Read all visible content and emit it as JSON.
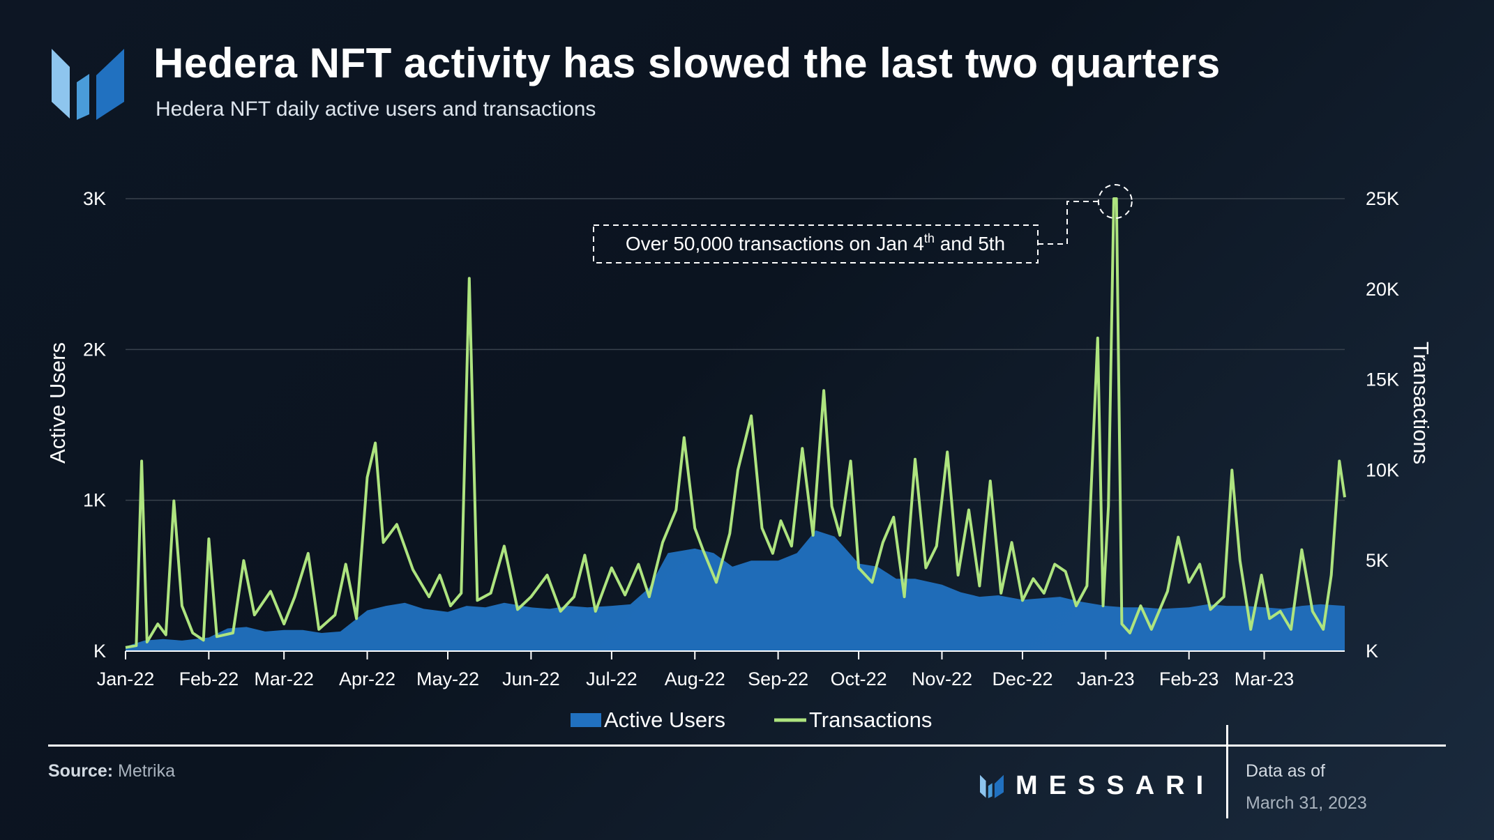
{
  "header": {
    "title": "Hedera NFT activity has slowed the last two quarters",
    "subtitle": "Hedera NFT daily active users and transactions"
  },
  "footer": {
    "source_label": "Source:",
    "source_value": "Metrika",
    "brand": "MESSARI",
    "asof_label": "Data as of",
    "asof_date": "March 31, 2023"
  },
  "colors": {
    "active_users": "#2171c0",
    "transactions": "#aee47f",
    "grid": "#39424d",
    "background": "#0d1624"
  },
  "icons": [
    "messari-logo-icon"
  ],
  "chart_data": {
    "type": "area",
    "title": "Hedera NFT activity has slowed the last two quarters",
    "subtitle": "Hedera NFT daily active users and transactions",
    "x_ticks": [
      "Jan-22",
      "Feb-22",
      "Mar-22",
      "Apr-22",
      "May-22",
      "Jun-22",
      "Jul-22",
      "Aug-22",
      "Sep-22",
      "Oct-22",
      "Nov-22",
      "Dec-22",
      "Jan-23",
      "Feb-23",
      "Mar-23"
    ],
    "x_range": [
      "2022-01-01",
      "2023-03-31"
    ],
    "ylabel_left": "Active Users",
    "ylabel_right": "Transactions",
    "ylim_left": [
      0,
      3000
    ],
    "ylim_right": [
      0,
      25000
    ],
    "yticks_left": [
      "K",
      "1K",
      "2K",
      "3K"
    ],
    "yticks_right": [
      "K",
      "5K",
      "10K",
      "15K",
      "20K",
      "25K"
    ],
    "grid": true,
    "legend_position": "bottom",
    "annotation": {
      "text_before": "Over 50,000 transactions on Jan 4",
      "superscript": "th",
      "text_after": " and 5th",
      "target_dates": [
        "2023-01-04",
        "2023-01-05"
      ]
    },
    "series": [
      {
        "name": "Active Users",
        "axis": "left",
        "style": "area",
        "points": [
          [
            "2022-01-01",
            30
          ],
          [
            "2022-01-08",
            70
          ],
          [
            "2022-01-15",
            80
          ],
          [
            "2022-01-22",
            70
          ],
          [
            "2022-02-01",
            90
          ],
          [
            "2022-02-08",
            150
          ],
          [
            "2022-02-15",
            160
          ],
          [
            "2022-02-22",
            130
          ],
          [
            "2022-03-01",
            140
          ],
          [
            "2022-03-08",
            140
          ],
          [
            "2022-03-15",
            120
          ],
          [
            "2022-03-22",
            130
          ],
          [
            "2022-04-01",
            270
          ],
          [
            "2022-04-08",
            300
          ],
          [
            "2022-04-15",
            320
          ],
          [
            "2022-04-22",
            280
          ],
          [
            "2022-05-01",
            260
          ],
          [
            "2022-05-08",
            300
          ],
          [
            "2022-05-15",
            290
          ],
          [
            "2022-05-22",
            320
          ],
          [
            "2022-06-01",
            290
          ],
          [
            "2022-06-08",
            280
          ],
          [
            "2022-06-15",
            300
          ],
          [
            "2022-06-22",
            290
          ],
          [
            "2022-07-01",
            300
          ],
          [
            "2022-07-08",
            310
          ],
          [
            "2022-07-15",
            420
          ],
          [
            "2022-07-22",
            650
          ],
          [
            "2022-08-01",
            680
          ],
          [
            "2022-08-08",
            650
          ],
          [
            "2022-08-15",
            560
          ],
          [
            "2022-08-22",
            600
          ],
          [
            "2022-09-01",
            600
          ],
          [
            "2022-09-08",
            650
          ],
          [
            "2022-09-15",
            800
          ],
          [
            "2022-09-22",
            760
          ],
          [
            "2022-10-01",
            580
          ],
          [
            "2022-10-08",
            560
          ],
          [
            "2022-10-15",
            480
          ],
          [
            "2022-10-22",
            480
          ],
          [
            "2022-11-01",
            440
          ],
          [
            "2022-11-08",
            390
          ],
          [
            "2022-11-15",
            360
          ],
          [
            "2022-11-22",
            370
          ],
          [
            "2022-12-01",
            340
          ],
          [
            "2022-12-08",
            350
          ],
          [
            "2022-12-15",
            360
          ],
          [
            "2022-12-22",
            330
          ],
          [
            "2023-01-01",
            300
          ],
          [
            "2023-01-08",
            290
          ],
          [
            "2023-01-15",
            290
          ],
          [
            "2023-01-22",
            280
          ],
          [
            "2023-02-01",
            290
          ],
          [
            "2023-02-08",
            310
          ],
          [
            "2023-02-15",
            300
          ],
          [
            "2023-02-22",
            300
          ],
          [
            "2023-03-01",
            290
          ],
          [
            "2023-03-08",
            280
          ],
          [
            "2023-03-15",
            300
          ],
          [
            "2023-03-22",
            310
          ],
          [
            "2023-03-31",
            300
          ]
        ]
      },
      {
        "name": "Transactions",
        "axis": "right",
        "style": "line",
        "points": [
          [
            "2022-01-01",
            200
          ],
          [
            "2022-01-05",
            300
          ],
          [
            "2022-01-07",
            10500
          ],
          [
            "2022-01-09",
            500
          ],
          [
            "2022-01-13",
            1500
          ],
          [
            "2022-01-16",
            900
          ],
          [
            "2022-01-19",
            8300
          ],
          [
            "2022-01-22",
            2500
          ],
          [
            "2022-01-26",
            1000
          ],
          [
            "2022-01-30",
            600
          ],
          [
            "2022-02-01",
            6200
          ],
          [
            "2022-02-04",
            800
          ],
          [
            "2022-02-10",
            1000
          ],
          [
            "2022-02-14",
            5000
          ],
          [
            "2022-02-18",
            2000
          ],
          [
            "2022-02-24",
            3300
          ],
          [
            "2022-03-01",
            1500
          ],
          [
            "2022-03-05",
            3000
          ],
          [
            "2022-03-10",
            5400
          ],
          [
            "2022-03-14",
            1200
          ],
          [
            "2022-03-20",
            2000
          ],
          [
            "2022-03-24",
            4800
          ],
          [
            "2022-03-28",
            1800
          ],
          [
            "2022-04-01",
            9600
          ],
          [
            "2022-04-04",
            11500
          ],
          [
            "2022-04-07",
            6000
          ],
          [
            "2022-04-12",
            7000
          ],
          [
            "2022-04-18",
            4500
          ],
          [
            "2022-04-24",
            3000
          ],
          [
            "2022-04-28",
            4200
          ],
          [
            "2022-05-02",
            2500
          ],
          [
            "2022-05-06",
            3200
          ],
          [
            "2022-05-09",
            20600
          ],
          [
            "2022-05-12",
            2800
          ],
          [
            "2022-05-17",
            3200
          ],
          [
            "2022-05-22",
            5800
          ],
          [
            "2022-05-27",
            2300
          ],
          [
            "2022-06-01",
            3000
          ],
          [
            "2022-06-07",
            4200
          ],
          [
            "2022-06-12",
            2200
          ],
          [
            "2022-06-17",
            3000
          ],
          [
            "2022-06-21",
            5300
          ],
          [
            "2022-06-25",
            2200
          ],
          [
            "2022-07-01",
            4600
          ],
          [
            "2022-07-06",
            3100
          ],
          [
            "2022-07-11",
            4800
          ],
          [
            "2022-07-15",
            3000
          ],
          [
            "2022-07-20",
            6000
          ],
          [
            "2022-07-25",
            7800
          ],
          [
            "2022-07-28",
            11800
          ],
          [
            "2022-08-01",
            6800
          ],
          [
            "2022-08-04",
            5600
          ],
          [
            "2022-08-09",
            3800
          ],
          [
            "2022-08-14",
            6500
          ],
          [
            "2022-08-17",
            10000
          ],
          [
            "2022-08-22",
            13000
          ],
          [
            "2022-08-26",
            6800
          ],
          [
            "2022-08-30",
            5400
          ],
          [
            "2022-09-02",
            7200
          ],
          [
            "2022-09-06",
            5800
          ],
          [
            "2022-09-10",
            11200
          ],
          [
            "2022-09-14",
            6400
          ],
          [
            "2022-09-18",
            14400
          ],
          [
            "2022-09-21",
            8000
          ],
          [
            "2022-09-24",
            6400
          ],
          [
            "2022-09-28",
            10500
          ],
          [
            "2022-10-01",
            4600
          ],
          [
            "2022-10-06",
            3800
          ],
          [
            "2022-10-10",
            6000
          ],
          [
            "2022-10-14",
            7400
          ],
          [
            "2022-10-18",
            3000
          ],
          [
            "2022-10-22",
            10600
          ],
          [
            "2022-10-26",
            4600
          ],
          [
            "2022-10-30",
            5800
          ],
          [
            "2022-11-03",
            11000
          ],
          [
            "2022-11-07",
            4200
          ],
          [
            "2022-11-11",
            7800
          ],
          [
            "2022-11-15",
            3600
          ],
          [
            "2022-11-19",
            9400
          ],
          [
            "2022-11-23",
            3200
          ],
          [
            "2022-11-27",
            6000
          ],
          [
            "2022-12-01",
            2800
          ],
          [
            "2022-12-05",
            4000
          ],
          [
            "2022-12-09",
            3200
          ],
          [
            "2022-12-13",
            4800
          ],
          [
            "2022-12-17",
            4400
          ],
          [
            "2022-12-21",
            2500
          ],
          [
            "2022-12-25",
            3600
          ],
          [
            "2022-12-29",
            17300
          ],
          [
            "2022-12-31",
            2500
          ],
          [
            "2023-01-02",
            8000
          ],
          [
            "2023-01-04",
            25000
          ],
          [
            "2023-01-05",
            25000
          ],
          [
            "2023-01-07",
            1500
          ],
          [
            "2023-01-10",
            1000
          ],
          [
            "2023-01-14",
            2500
          ],
          [
            "2023-01-18",
            1200
          ],
          [
            "2023-01-24",
            3300
          ],
          [
            "2023-01-28",
            6300
          ],
          [
            "2023-02-01",
            3800
          ],
          [
            "2023-02-05",
            4800
          ],
          [
            "2023-02-09",
            2300
          ],
          [
            "2023-02-14",
            3000
          ],
          [
            "2023-02-17",
            10000
          ],
          [
            "2023-02-20",
            5000
          ],
          [
            "2023-02-24",
            1200
          ],
          [
            "2023-02-28",
            4200
          ],
          [
            "2023-03-03",
            1800
          ],
          [
            "2023-03-07",
            2200
          ],
          [
            "2023-03-11",
            1200
          ],
          [
            "2023-03-15",
            5600
          ],
          [
            "2023-03-19",
            2200
          ],
          [
            "2023-03-23",
            1200
          ],
          [
            "2023-03-26",
            4200
          ],
          [
            "2023-03-29",
            10500
          ],
          [
            "2023-03-31",
            8500
          ]
        ]
      }
    ]
  }
}
